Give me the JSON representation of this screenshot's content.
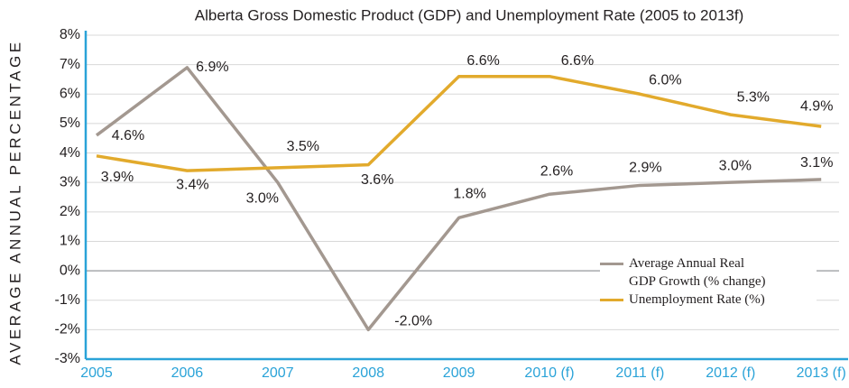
{
  "chart_data": {
    "type": "line",
    "title": "Alberta Gross Domestic Product (GDP) and Unemployment Rate (2005 to 2013f)",
    "ylabel": "AVERAGE ANNUAL PERCENTAGE",
    "categories": [
      "2005",
      "2006",
      "2007",
      "2008",
      "2009",
      "2010 (f)",
      "2011 (f)",
      "2012 (f)",
      "2013 (f)"
    ],
    "series": [
      {
        "name": "Average Annual Real GDP Growth (% change)",
        "color": "#a39890",
        "values": [
          4.6,
          6.9,
          3.0,
          -2.0,
          1.8,
          2.6,
          2.9,
          3.0,
          3.1
        ],
        "value_labels": [
          "4.6%",
          "6.9%",
          "3.0%",
          "-2.0%",
          "1.8%",
          "2.6%",
          "2.9%",
          "3.0%",
          "3.1%"
        ]
      },
      {
        "name": "Unemployment Rate (%)",
        "color": "#e2aa2c",
        "values": [
          3.9,
          3.4,
          3.5,
          3.6,
          6.6,
          6.6,
          6.0,
          5.3,
          4.9
        ],
        "value_labels": [
          "3.9%",
          "3.4%",
          "3.5%",
          "3.6%",
          "6.6%",
          "6.6%",
          "6.0%",
          "5.3%",
          "4.9%"
        ]
      }
    ],
    "ylim": [
      -3,
      8
    ],
    "yticks": [
      {
        "value": -3,
        "label": "-3%"
      },
      {
        "value": -2,
        "label": "-2%"
      },
      {
        "value": -1,
        "label": "-1%"
      },
      {
        "value": 0,
        "label": "0%"
      },
      {
        "value": 1,
        "label": "1%"
      },
      {
        "value": 2,
        "label": "2%"
      },
      {
        "value": 3,
        "label": "3%"
      },
      {
        "value": 4,
        "label": "4%"
      },
      {
        "value": 5,
        "label": "5%"
      },
      {
        "value": 6,
        "label": "6%"
      },
      {
        "value": 7,
        "label": "7%"
      },
      {
        "value": 8,
        "label": "8%"
      }
    ],
    "grid": true
  }
}
